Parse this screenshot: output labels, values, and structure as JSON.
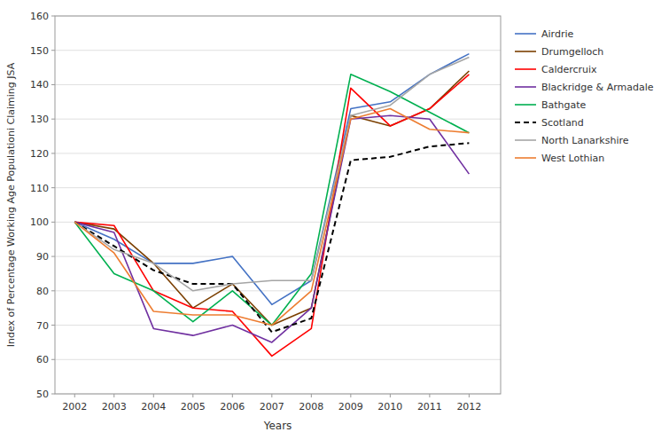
{
  "chart_data": {
    "type": "line",
    "xlabel": "Years",
    "ylabel": "Index of Percentage Working Age Populationi Claiming JSA",
    "x": [
      2002,
      2003,
      2004,
      2005,
      2006,
      2007,
      2008,
      2009,
      2010,
      2011,
      2012
    ],
    "series": [
      {
        "name": "Airdrie",
        "color": "#4472C4",
        "line_style": "solid",
        "values": [
          100,
          95,
          88,
          88,
          90,
          76,
          83,
          133,
          135,
          143,
          149
        ]
      },
      {
        "name": "Drumgelloch",
        "color": "#7B3F00",
        "line_style": "solid",
        "values": [
          100,
          98,
          88,
          75,
          82,
          70,
          75,
          131,
          128,
          133,
          144
        ]
      },
      {
        "name": "Caldercruix",
        "color": "#FF0000",
        "line_style": "solid",
        "values": [
          100,
          99,
          80,
          75,
          74,
          61,
          69,
          139,
          128,
          133,
          143
        ]
      },
      {
        "name": "Blackridge & Armadale",
        "color": "#7030A0",
        "line_style": "solid",
        "values": [
          100,
          97,
          69,
          67,
          70,
          65,
          75,
          130,
          131,
          130,
          114
        ]
      },
      {
        "name": "Bathgate",
        "color": "#00B050",
        "line_style": "solid",
        "values": [
          100,
          85,
          80,
          71,
          80,
          70,
          85,
          143,
          138,
          132,
          126
        ]
      },
      {
        "name": "Scotland",
        "color": "#000000",
        "line_style": "dashed",
        "values": [
          100,
          93,
          86,
          82,
          82,
          68,
          72,
          118,
          119,
          122,
          123
        ]
      },
      {
        "name": "North Lanarkshire",
        "color": "#A5A5A5",
        "line_style": "solid",
        "values": [
          100,
          92,
          88,
          80,
          82,
          83,
          83,
          131,
          134,
          143,
          148
        ]
      },
      {
        "name": "West Lothian",
        "color": "#ED7D31",
        "line_style": "solid",
        "values": [
          100,
          91,
          74,
          73,
          73,
          70,
          80,
          130,
          133,
          127,
          126
        ]
      }
    ],
    "xlim": [
      2001.5,
      2012.8
    ],
    "ylim": [
      50,
      160
    ],
    "xticks": [
      2002,
      2003,
      2004,
      2005,
      2006,
      2007,
      2008,
      2009,
      2010,
      2011,
      2012
    ],
    "yticks": [
      50,
      60,
      70,
      80,
      90,
      100,
      110,
      120,
      130,
      140,
      150,
      160
    ],
    "grid": true,
    "legend": "right"
  }
}
